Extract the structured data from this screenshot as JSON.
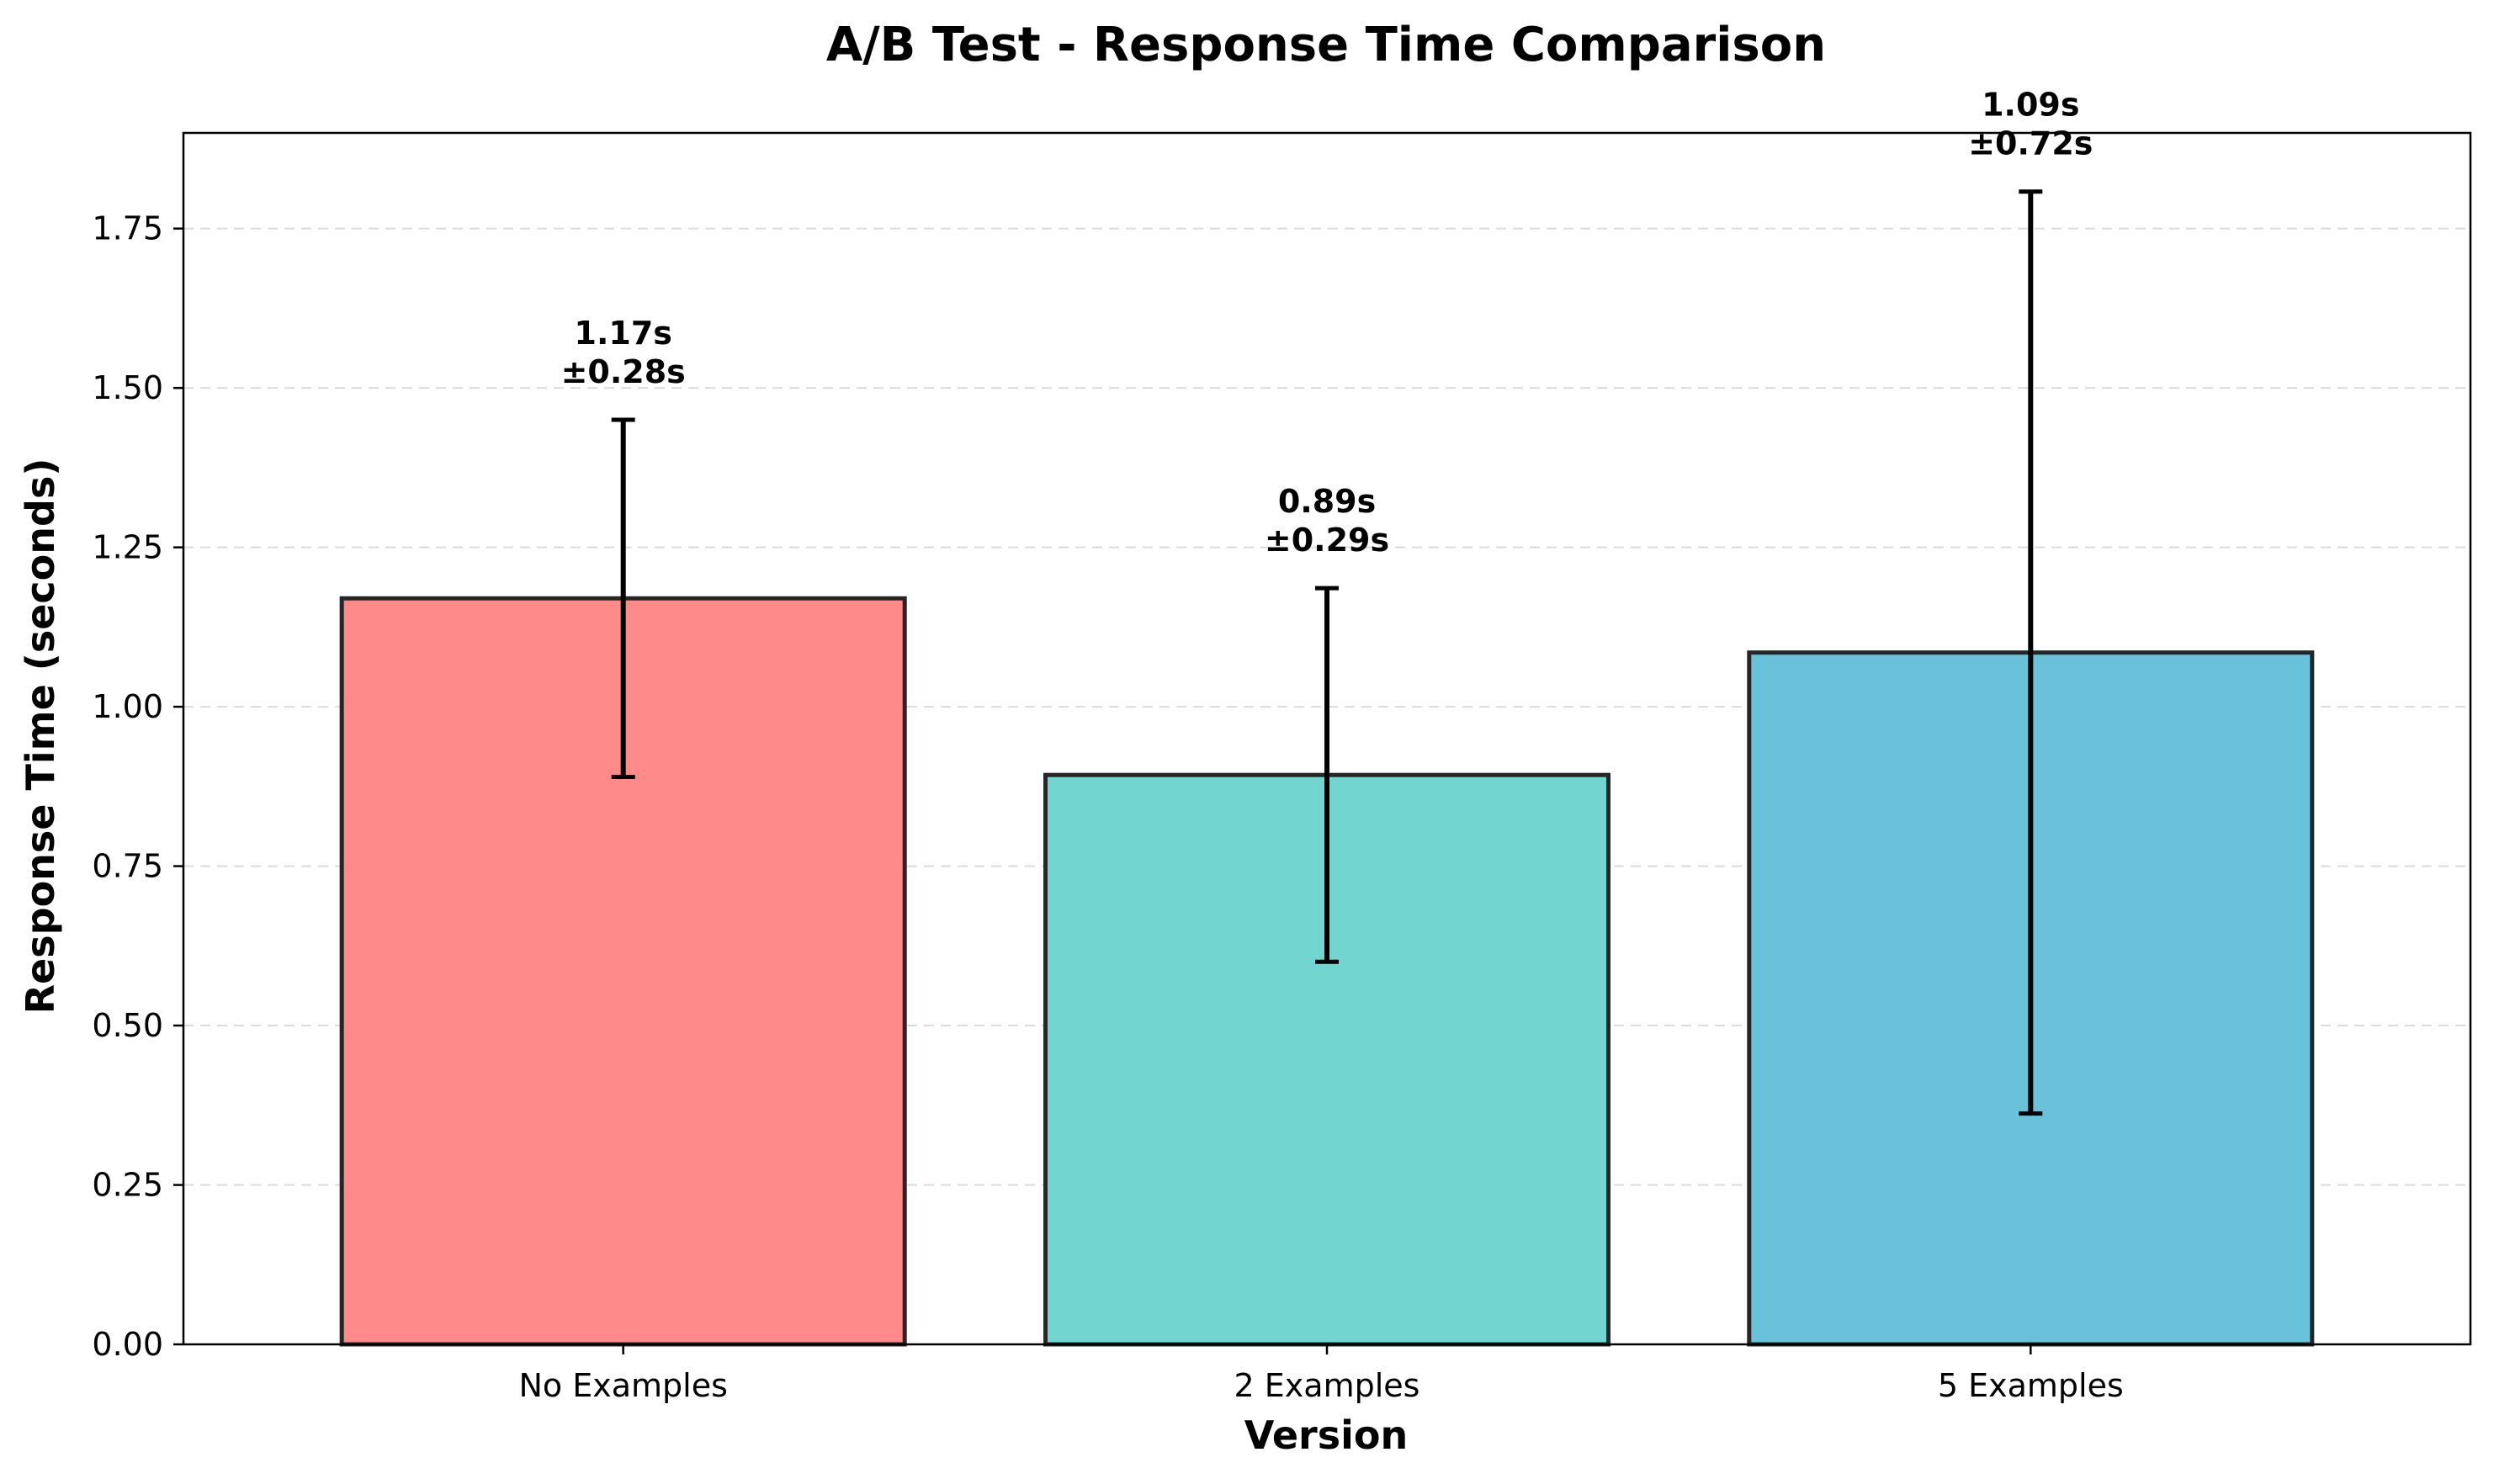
{
  "chart_data": {
    "type": "bar",
    "title": "A/B Test - Response Time Comparison",
    "xlabel": "Version",
    "ylabel": "Response Time (seconds)",
    "categories": [
      "No Examples",
      "2 Examples",
      "5 Examples"
    ],
    "values": [
      1.17,
      0.893,
      1.085
    ],
    "errors": [
      0.28,
      0.293,
      0.723
    ],
    "value_labels": [
      "1.17s",
      "0.89s",
      "1.09s"
    ],
    "error_labels": [
      "±0.28s",
      "±0.29s",
      "±0.72s"
    ],
    "colors": [
      "#FF8A8A",
      "#72D5CF",
      "#69C2D9"
    ],
    "edge_color": "#262626",
    "ylim": [
      0,
      1.9
    ],
    "yticks": [
      0.0,
      0.25,
      0.5,
      0.75,
      1.0,
      1.25,
      1.5,
      1.75
    ],
    "ytick_labels": [
      "0.00",
      "0.25",
      "0.50",
      "0.75",
      "1.00",
      "1.25",
      "1.50",
      "1.75"
    ],
    "grid": "y-dashed"
  }
}
